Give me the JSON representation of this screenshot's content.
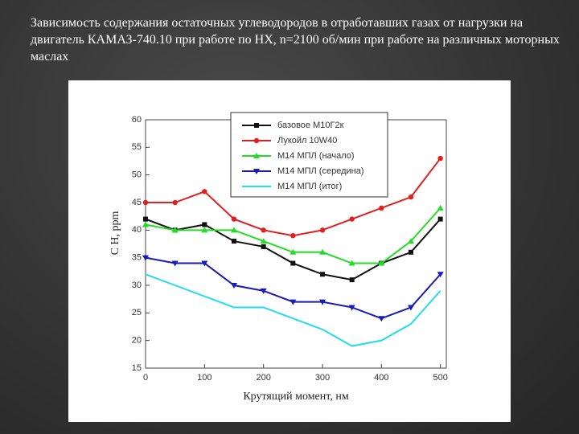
{
  "chart_data": {
    "type": "line",
    "title": "Зависимость содержания остаточных углеводородов в отработавших газах от нагрузки на двигатель КАМАЗ-740.10 при работе по НХ, n=2100 об/мин  при работе на различных моторных маслах",
    "x_label": "Крутящий момент, нм",
    "y_label": "C H, ppm",
    "x": [
      0,
      50,
      100,
      150,
      200,
      250,
      300,
      350,
      400,
      450,
      500
    ],
    "xlim": [
      0,
      510
    ],
    "xticks": [
      0,
      100,
      200,
      300,
      400,
      500
    ],
    "ylim": [
      15,
      60
    ],
    "yticks": [
      15,
      20,
      25,
      30,
      35,
      40,
      45,
      50,
      55,
      60
    ],
    "legend": "top-left",
    "series": [
      {
        "name": "базовое М10Г2к",
        "color": "#111111",
        "marker": "square",
        "values": [
          42,
          40,
          41,
          38,
          37,
          34,
          32,
          31,
          34,
          36,
          42
        ]
      },
      {
        "name": "Лукойл 10W40",
        "color": "#e02020",
        "marker": "circle",
        "values": [
          45,
          45,
          47,
          42,
          40,
          39,
          40,
          42,
          44,
          46,
          53
        ]
      },
      {
        "name": "М14 МПЛ (начало)",
        "color": "#22dd22",
        "marker": "triangle-up",
        "values": [
          41,
          40,
          40,
          40,
          38,
          36,
          36,
          34,
          34,
          38,
          44
        ]
      },
      {
        "name": "М14 МПЛ (середина)",
        "color": "#1a1ab8",
        "marker": "triangle-down",
        "values": [
          35,
          34,
          34,
          30,
          29,
          27,
          27,
          26,
          24,
          26,
          32
        ]
      },
      {
        "name": "М14 МПЛ (итог)",
        "color": "#22ddee",
        "marker": "none",
        "values": [
          32,
          30,
          28,
          26,
          26,
          24,
          22,
          19,
          20,
          23,
          29
        ]
      }
    ]
  }
}
